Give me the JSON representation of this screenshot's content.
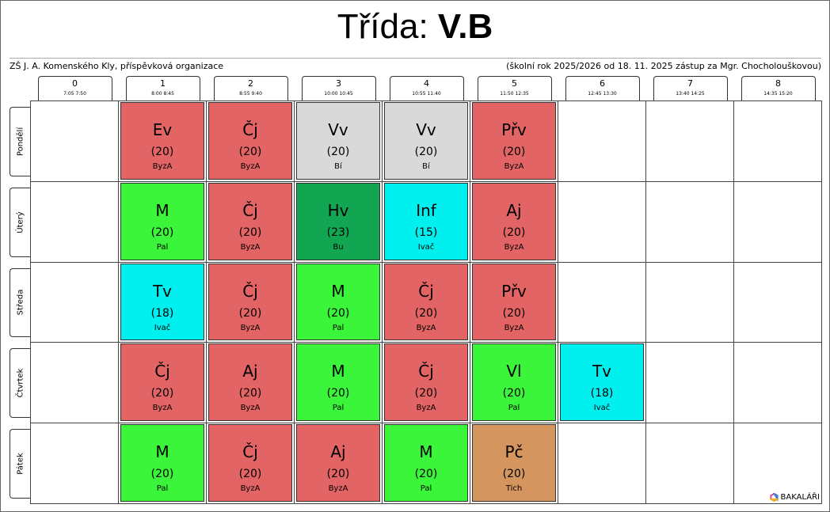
{
  "title": {
    "label": "Třída:",
    "class_name": "V.B"
  },
  "subtitle": {
    "school": "ZŠ J. A. Komenského Kly, příspěvková organizace",
    "note": "(školní rok 2025/2026 od 18. 11. 2025 zástup za Mgr. Chocholouškovou)"
  },
  "periods": [
    {
      "number": "0",
      "time": "7:05  7:50"
    },
    {
      "number": "1",
      "time": "8:00  8:45"
    },
    {
      "number": "2",
      "time": "8:55  9:40"
    },
    {
      "number": "3",
      "time": "10:00 10:45"
    },
    {
      "number": "4",
      "time": "10:55 11:40"
    },
    {
      "number": "5",
      "time": "11:50 12:35"
    },
    {
      "number": "6",
      "time": "12:45 13:30"
    },
    {
      "number": "7",
      "time": "13:40 14:25"
    },
    {
      "number": "8",
      "time": "14:35 15:20"
    }
  ],
  "days": [
    {
      "name": "Pondělí",
      "cells": [
        null,
        {
          "subject": "Ev",
          "group": "(20)",
          "teacher": "ByzA",
          "color": "#e26464"
        },
        {
          "subject": "Čj",
          "group": "(20)",
          "teacher": "ByzA",
          "color": "#e26464"
        },
        {
          "subject": "Vv",
          "group": "(20)",
          "teacher": "Bí",
          "color": "#d9d9d9"
        },
        {
          "subject": "Vv",
          "group": "(20)",
          "teacher": "Bí",
          "color": "#d9d9d9"
        },
        {
          "subject": "Přv",
          "group": "(20)",
          "teacher": "ByzA",
          "color": "#e26464"
        },
        null,
        null,
        null
      ]
    },
    {
      "name": "Úterý",
      "cells": [
        null,
        {
          "subject": "M",
          "group": "(20)",
          "teacher": "Pal",
          "color": "#3af53a"
        },
        {
          "subject": "Čj",
          "group": "(20)",
          "teacher": "ByzA",
          "color": "#e26464"
        },
        {
          "subject": "Hv",
          "group": "(23)",
          "teacher": "Bu",
          "color": "#12a653"
        },
        {
          "subject": "Inf",
          "group": "(15)",
          "teacher": "Ivač",
          "color": "#00f0f0"
        },
        {
          "subject": "Aj",
          "group": "(20)",
          "teacher": "ByzA",
          "color": "#e26464"
        },
        null,
        null,
        null
      ]
    },
    {
      "name": "Středa",
      "cells": [
        null,
        {
          "subject": "Tv",
          "group": "(18)",
          "teacher": "Ivač",
          "color": "#00f0f0"
        },
        {
          "subject": "Čj",
          "group": "(20)",
          "teacher": "ByzA",
          "color": "#e26464"
        },
        {
          "subject": "M",
          "group": "(20)",
          "teacher": "Pal",
          "color": "#3af53a"
        },
        {
          "subject": "Čj",
          "group": "(20)",
          "teacher": "ByzA",
          "color": "#e26464"
        },
        {
          "subject": "Přv",
          "group": "(20)",
          "teacher": "ByzA",
          "color": "#e26464"
        },
        null,
        null,
        null
      ]
    },
    {
      "name": "Čtvrtek",
      "cells": [
        null,
        {
          "subject": "Čj",
          "group": "(20)",
          "teacher": "ByzA",
          "color": "#e26464"
        },
        {
          "subject": "Aj",
          "group": "(20)",
          "teacher": "ByzA",
          "color": "#e26464"
        },
        {
          "subject": "M",
          "group": "(20)",
          "teacher": "Pal",
          "color": "#3af53a"
        },
        {
          "subject": "Čj",
          "group": "(20)",
          "teacher": "ByzA",
          "color": "#e26464"
        },
        {
          "subject": "Vl",
          "group": "(20)",
          "teacher": "Pal",
          "color": "#3af53a"
        },
        {
          "subject": "Tv",
          "group": "(18)",
          "teacher": "Ivač",
          "color": "#00f0f0"
        },
        null,
        null
      ]
    },
    {
      "name": "Pátek",
      "cells": [
        null,
        {
          "subject": "M",
          "group": "(20)",
          "teacher": "Pal",
          "color": "#3af53a"
        },
        {
          "subject": "Čj",
          "group": "(20)",
          "teacher": "ByzA",
          "color": "#e26464"
        },
        {
          "subject": "Aj",
          "group": "(20)",
          "teacher": "ByzA",
          "color": "#e26464"
        },
        {
          "subject": "M",
          "group": "(20)",
          "teacher": "Pal",
          "color": "#3af53a"
        },
        {
          "subject": "Pč",
          "group": "(20)",
          "teacher": "Tich",
          "color": "#d4955f"
        },
        null,
        null,
        null
      ]
    }
  ],
  "footer": {
    "brand": "BAKALÁŘI"
  }
}
